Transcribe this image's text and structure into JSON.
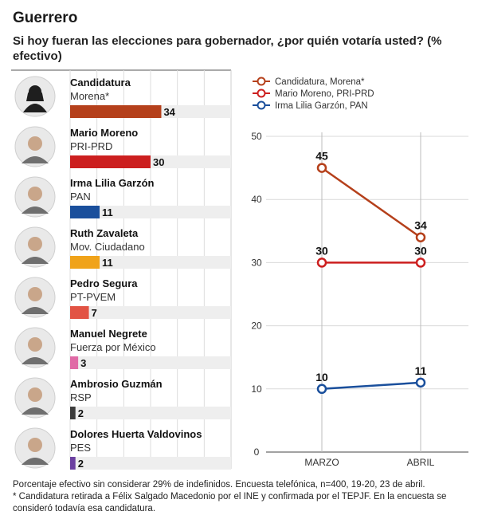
{
  "header": {
    "region": "Guerrero",
    "question": "Si hoy fueran las elecciones para gobernador, ¿por quién votaría usted? (% efectivo)"
  },
  "chart_data": [
    {
      "type": "bar",
      "orientation": "horizontal",
      "categories": [
        "Candidatura",
        "Mario Moreno",
        "Irma Lilia Garzón",
        "Ruth Zavaleta",
        "Pedro Segura",
        "Manuel Negrete",
        "Ambrosio Guzmán",
        "Dolores Huerta Valdovinos"
      ],
      "parties": [
        "Morena*",
        "PRI-PRD",
        "PAN",
        "Mov. Ciudadano",
        "PT-PVEM",
        "Fuerza por México",
        "RSP",
        "PES"
      ],
      "values": [
        34,
        30,
        11,
        11,
        7,
        3,
        2,
        2
      ],
      "colors": [
        "#b5401b",
        "#cc1f1f",
        "#1a4f9c",
        "#f0a31a",
        "#e25344",
        "#e06aa6",
        "#3c3c3c",
        "#6b3fa0"
      ],
      "xlim": [
        0,
        60
      ],
      "grid": true
    },
    {
      "type": "line",
      "x": [
        "MARZO",
        "ABRIL"
      ],
      "series": [
        {
          "name": "Candidatura, Morena*",
          "values": [
            45,
            34
          ],
          "color": "#b5401b"
        },
        {
          "name": "Mario Moreno, PRI-PRD",
          "values": [
            30,
            30
          ],
          "color": "#cc1f1f"
        },
        {
          "name": "Irma Lilia Garzón, PAN",
          "values": [
            10,
            11
          ],
          "color": "#1a4f9c"
        }
      ],
      "ylim": [
        0,
        50
      ],
      "yticks": [
        0,
        10,
        20,
        30,
        40,
        50
      ],
      "grid": true,
      "legend": "top-left"
    }
  ],
  "footnote": {
    "line1": "Porcentaje efectivo sin considerar 29% de indefinidos. Encuesta telefónica, n=400, 19-20, 23 de abril.",
    "line2": "* Candidatura retirada a Félix Salgado Macedonio por el INE y confirmada por el TEPJF. En la encuesta se consideró todavía esa candidatura."
  }
}
